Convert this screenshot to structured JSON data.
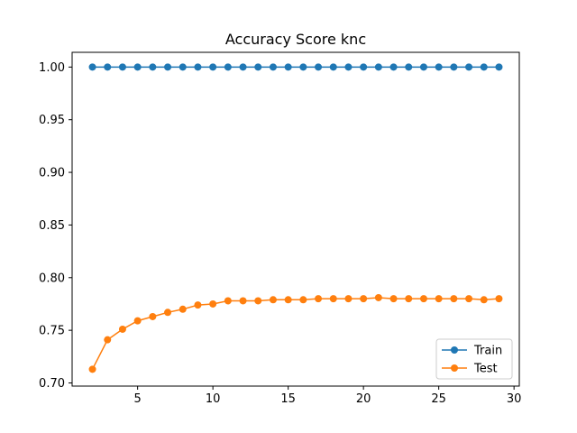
{
  "chart_data": {
    "type": "line",
    "title": "Accuracy Score knc",
    "xlabel": "",
    "ylabel": "",
    "x": [
      2,
      3,
      4,
      5,
      6,
      7,
      8,
      9,
      10,
      11,
      12,
      13,
      14,
      15,
      16,
      17,
      18,
      19,
      20,
      21,
      22,
      23,
      24,
      25,
      26,
      27,
      28,
      29
    ],
    "xlim": [
      0.65,
      30.35
    ],
    "ylim": [
      0.697,
      1.014
    ],
    "xticks": [
      5,
      10,
      15,
      20,
      25,
      30
    ],
    "yticks": [
      0.7,
      0.75,
      0.8,
      0.85,
      0.9,
      0.95,
      1.0
    ],
    "xtick_labels": [
      "5",
      "10",
      "15",
      "20",
      "25",
      "30"
    ],
    "ytick_labels": [
      "0.70",
      "0.75",
      "0.80",
      "0.85",
      "0.90",
      "0.95",
      "1.00"
    ],
    "grid": false,
    "legend": "bottom-right",
    "series": [
      {
        "name": "Train",
        "color": "#1f77b4",
        "marker": "circle",
        "values": [
          1,
          1,
          1,
          1,
          1,
          1,
          1,
          1,
          1,
          1,
          1,
          1,
          1,
          1,
          1,
          1,
          1,
          1,
          1,
          1,
          1,
          1,
          1,
          1,
          1,
          1,
          1,
          1
        ]
      },
      {
        "name": "Test",
        "color": "#ff7f0e",
        "marker": "circle",
        "values": [
          0.713,
          0.741,
          0.751,
          0.759,
          0.763,
          0.767,
          0.77,
          0.774,
          0.775,
          0.778,
          0.778,
          0.778,
          0.779,
          0.779,
          0.779,
          0.78,
          0.78,
          0.78,
          0.78,
          0.781,
          0.78,
          0.78,
          0.78,
          0.78,
          0.78,
          0.78,
          0.779,
          0.78
        ]
      }
    ]
  }
}
